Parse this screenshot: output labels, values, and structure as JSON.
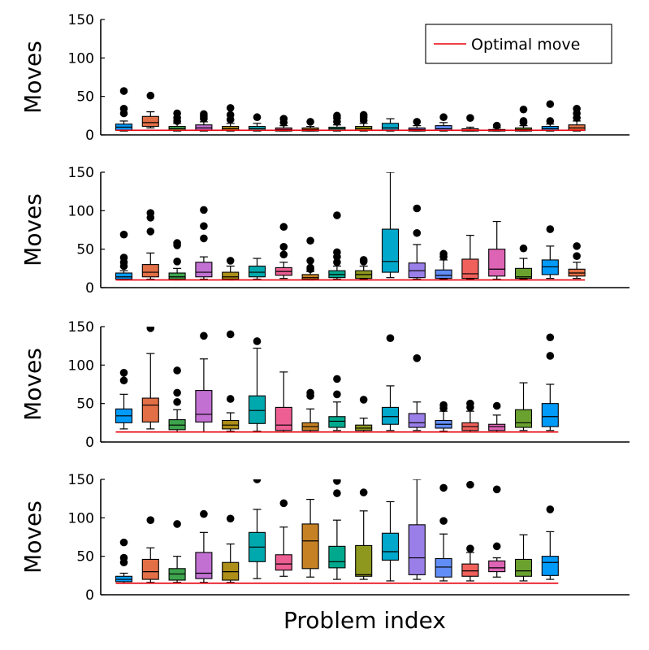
{
  "colors": {
    "optimal_line": "#e8000b",
    "palette": [
      "#009af9",
      "#e26f46",
      "#3da44d",
      "#c271d2",
      "#ac8e18",
      "#00a9ad",
      "#ed5e93",
      "#c68125",
      "#00a98d",
      "#8e971e",
      "#00a8cb",
      "#9b7fe8",
      "#618df6",
      "#f0615c",
      "#dd64b5",
      "#6aa12f",
      "#009af9",
      "#e26f46"
    ]
  },
  "chart_data": [
    {
      "type": "box",
      "ylabel": "Moves",
      "ylim": [
        0,
        150
      ],
      "yticks": [
        "0",
        "50",
        "100",
        "150"
      ],
      "legend": {
        "label": "Optimal move",
        "placement": "top-right"
      },
      "optimal": 6,
      "boxes": [
        {
          "q1": 6,
          "median": 10,
          "q3": 14,
          "wlo": 5,
          "whi": 18,
          "outliers": [
            28,
            34,
            57
          ]
        },
        {
          "q1": 11,
          "median": 16,
          "q3": 24,
          "wlo": 9,
          "whi": 30,
          "outliers": [
            51
          ]
        },
        {
          "q1": 6,
          "median": 8,
          "q3": 11,
          "wlo": 5,
          "whi": 15,
          "outliers": [
            18,
            22,
            28
          ]
        },
        {
          "q1": 6,
          "median": 9,
          "q3": 13,
          "wlo": 5,
          "whi": 17,
          "outliers": [
            21,
            24,
            27
          ]
        },
        {
          "q1": 6,
          "median": 8,
          "q3": 11,
          "wlo": 5,
          "whi": 15,
          "outliers": [
            20,
            26,
            35
          ]
        },
        {
          "q1": 6,
          "median": 8,
          "q3": 11,
          "wlo": 5,
          "whi": 15,
          "outliers": [
            23
          ]
        },
        {
          "q1": 5,
          "median": 7,
          "q3": 9,
          "wlo": 5,
          "whi": 12,
          "outliers": [
            16,
            21
          ]
        },
        {
          "q1": 5,
          "median": 7,
          "q3": 9,
          "wlo": 5,
          "whi": 11,
          "outliers": [
            17
          ]
        },
        {
          "q1": 6,
          "median": 8,
          "q3": 10,
          "wlo": 5,
          "whi": 13,
          "outliers": [
            17,
            22,
            25
          ]
        },
        {
          "q1": 6,
          "median": 8,
          "q3": 11,
          "wlo": 5,
          "whi": 15,
          "outliers": [
            19,
            23,
            26
          ]
        },
        {
          "q1": 6,
          "median": 9,
          "q3": 15,
          "wlo": 5,
          "whi": 21,
          "outliers": []
        },
        {
          "q1": 5,
          "median": 7,
          "q3": 9,
          "wlo": 5,
          "whi": 12,
          "outliers": [
            17
          ]
        },
        {
          "q1": 6,
          "median": 8,
          "q3": 12,
          "wlo": 5,
          "whi": 16,
          "outliers": [
            23
          ]
        },
        {
          "q1": 5,
          "median": 6,
          "q3": 8,
          "wlo": 5,
          "whi": 10,
          "outliers": [
            22
          ]
        },
        {
          "q1": 5,
          "median": 6,
          "q3": 7,
          "wlo": 5,
          "whi": 9,
          "outliers": [
            12
          ]
        },
        {
          "q1": 5,
          "median": 7,
          "q3": 9,
          "wlo": 5,
          "whi": 12,
          "outliers": [
            16,
            18,
            33
          ]
        },
        {
          "q1": 6,
          "median": 8,
          "q3": 11,
          "wlo": 5,
          "whi": 14,
          "outliers": [
            18,
            40
          ]
        },
        {
          "q1": 6,
          "median": 9,
          "q3": 13,
          "wlo": 5,
          "whi": 18,
          "outliers": [
            22,
            28,
            34
          ]
        }
      ]
    },
    {
      "type": "box",
      "ylabel": "Moves",
      "ylim": [
        0,
        150
      ],
      "yticks": [
        "0",
        "50",
        "100",
        "150"
      ],
      "optimal": 10,
      "boxes": [
        {
          "q1": 11,
          "median": 14,
          "q3": 19,
          "wlo": 10,
          "whi": 22,
          "outliers": [
            28,
            33,
            39,
            69
          ]
        },
        {
          "q1": 14,
          "median": 20,
          "q3": 30,
          "wlo": 11,
          "whi": 45,
          "outliers": [
            73,
            91,
            97
          ]
        },
        {
          "q1": 11,
          "median": 14,
          "q3": 19,
          "wlo": 10,
          "whi": 25,
          "outliers": [
            34,
            55,
            58
          ]
        },
        {
          "q1": 14,
          "median": 20,
          "q3": 33,
          "wlo": 11,
          "whi": 40,
          "outliers": [
            64,
            80,
            101
          ]
        },
        {
          "q1": 11,
          "median": 14,
          "q3": 20,
          "wlo": 10,
          "whi": 28,
          "outliers": [
            35
          ]
        },
        {
          "q1": 14,
          "median": 20,
          "q3": 28,
          "wlo": 11,
          "whi": 38,
          "outliers": []
        },
        {
          "q1": 16,
          "median": 21,
          "q3": 26,
          "wlo": 12,
          "whi": 33,
          "outliers": [
            43,
            53,
            79
          ]
        },
        {
          "q1": 11,
          "median": 13,
          "q3": 17,
          "wlo": 10,
          "whi": 21,
          "outliers": [
            24,
            26,
            35,
            61
          ]
        },
        {
          "q1": 13,
          "median": 17,
          "q3": 22,
          "wlo": 11,
          "whi": 28,
          "outliers": [
            33,
            40,
            46,
            94
          ]
        },
        {
          "q1": 12,
          "median": 17,
          "q3": 22,
          "wlo": 11,
          "whi": 28,
          "outliers": [
            34,
            36
          ]
        },
        {
          "q1": 20,
          "median": 34,
          "q3": 76,
          "wlo": 13,
          "whi": 150,
          "outliers": []
        },
        {
          "q1": 13,
          "median": 22,
          "q3": 32,
          "wlo": 11,
          "whi": 56,
          "outliers": [
            71,
            103
          ]
        },
        {
          "q1": 12,
          "median": 16,
          "q3": 23,
          "wlo": 11,
          "whi": 36,
          "outliers": [
            40,
            44
          ]
        },
        {
          "q1": 12,
          "median": 18,
          "q3": 37,
          "wlo": 11,
          "whi": 68,
          "outliers": []
        },
        {
          "q1": 15,
          "median": 24,
          "q3": 50,
          "wlo": 11,
          "whi": 86,
          "outliers": []
        },
        {
          "q1": 12,
          "median": 14,
          "q3": 25,
          "wlo": 11,
          "whi": 38,
          "outliers": [
            51
          ]
        },
        {
          "q1": 17,
          "median": 27,
          "q3": 36,
          "wlo": 12,
          "whi": 54,
          "outliers": [
            76
          ]
        },
        {
          "q1": 15,
          "median": 19,
          "q3": 24,
          "wlo": 12,
          "whi": 33,
          "outliers": [
            41,
            54
          ]
        }
      ]
    },
    {
      "type": "box",
      "ylabel": "Moves",
      "ylim": [
        0,
        150
      ],
      "yticks": [
        "0",
        "50",
        "100",
        "150"
      ],
      "optimal": 13,
      "boxes": [
        {
          "q1": 25,
          "median": 34,
          "q3": 43,
          "wlo": 17,
          "whi": 62,
          "outliers": [
            80,
            90
          ]
        },
        {
          "q1": 26,
          "median": 48,
          "q3": 57,
          "wlo": 17,
          "whi": 115,
          "outliers": [
            148
          ]
        },
        {
          "q1": 16,
          "median": 22,
          "q3": 29,
          "wlo": 13,
          "whi": 42,
          "outliers": [
            52,
            64,
            93
          ]
        },
        {
          "q1": 26,
          "median": 36,
          "q3": 67,
          "wlo": 13,
          "whi": 108,
          "outliers": [
            138
          ]
        },
        {
          "q1": 17,
          "median": 22,
          "q3": 28,
          "wlo": 14,
          "whi": 38,
          "outliers": [
            56,
            140
          ]
        },
        {
          "q1": 24,
          "median": 41,
          "q3": 60,
          "wlo": 14,
          "whi": 122,
          "outliers": [
            131
          ]
        },
        {
          "q1": 15,
          "median": 22,
          "q3": 45,
          "wlo": 13,
          "whi": 91,
          "outliers": []
        },
        {
          "q1": 15,
          "median": 20,
          "q3": 25,
          "wlo": 13,
          "whi": 43,
          "outliers": [
            60,
            64
          ]
        },
        {
          "q1": 19,
          "median": 27,
          "q3": 33,
          "wlo": 15,
          "whi": 52,
          "outliers": [
            62,
            82
          ]
        },
        {
          "q1": 15,
          "median": 18,
          "q3": 22,
          "wlo": 13,
          "whi": 31,
          "outliers": [
            55
          ]
        },
        {
          "q1": 23,
          "median": 33,
          "q3": 45,
          "wlo": 15,
          "whi": 73,
          "outliers": [
            135
          ]
        },
        {
          "q1": 19,
          "median": 25,
          "q3": 37,
          "wlo": 15,
          "whi": 52,
          "outliers": [
            109
          ]
        },
        {
          "q1": 18,
          "median": 23,
          "q3": 28,
          "wlo": 14,
          "whi": 40,
          "outliers": [
            44,
            48
          ]
        },
        {
          "q1": 15,
          "median": 20,
          "q3": 25,
          "wlo": 13,
          "whi": 40,
          "outliers": [
            45,
            50
          ]
        },
        {
          "q1": 15,
          "median": 20,
          "q3": 23,
          "wlo": 13,
          "whi": 35,
          "outliers": [
            47
          ]
        },
        {
          "q1": 19,
          "median": 25,
          "q3": 42,
          "wlo": 15,
          "whi": 77,
          "outliers": []
        },
        {
          "q1": 20,
          "median": 33,
          "q3": 50,
          "wlo": 15,
          "whi": 75,
          "outliers": [
            112,
            136
          ]
        }
      ]
    },
    {
      "type": "box",
      "ylabel": "Moves",
      "xlabel": "Problem index",
      "ylim": [
        0,
        150
      ],
      "yticks": [
        "0",
        "50",
        "100",
        "150"
      ],
      "optimal": 15,
      "boxes": [
        {
          "q1": 17,
          "median": 20,
          "q3": 24,
          "wlo": 15,
          "whi": 28,
          "outliers": [
            42,
            48,
            68
          ]
        },
        {
          "q1": 20,
          "median": 30,
          "q3": 46,
          "wlo": 16,
          "whi": 61,
          "outliers": [
            97
          ]
        },
        {
          "q1": 19,
          "median": 27,
          "q3": 34,
          "wlo": 16,
          "whi": 50,
          "outliers": [
            92
          ]
        },
        {
          "q1": 21,
          "median": 28,
          "q3": 55,
          "wlo": 16,
          "whi": 81,
          "outliers": [
            105
          ]
        },
        {
          "q1": 19,
          "median": 30,
          "q3": 42,
          "wlo": 16,
          "whi": 66,
          "outliers": [
            99
          ]
        },
        {
          "q1": 43,
          "median": 62,
          "q3": 81,
          "wlo": 21,
          "whi": 111,
          "outliers": [
            150
          ]
        },
        {
          "q1": 32,
          "median": 40,
          "q3": 52,
          "wlo": 24,
          "whi": 88,
          "outliers": [
            119
          ]
        },
        {
          "q1": 34,
          "median": 70,
          "q3": 92,
          "wlo": 23,
          "whi": 124,
          "outliers": []
        },
        {
          "q1": 35,
          "median": 43,
          "q3": 63,
          "wlo": 20,
          "whi": 97,
          "outliers": [
            132,
            148
          ]
        },
        {
          "q1": 24,
          "median": 26,
          "q3": 64,
          "wlo": 20,
          "whi": 109,
          "outliers": [
            133
          ]
        },
        {
          "q1": 45,
          "median": 56,
          "q3": 80,
          "wlo": 18,
          "whi": 121,
          "outliers": []
        },
        {
          "q1": 26,
          "median": 48,
          "q3": 91,
          "wlo": 20,
          "whi": 150,
          "outliers": []
        },
        {
          "q1": 23,
          "median": 36,
          "q3": 47,
          "wlo": 18,
          "whi": 79,
          "outliers": [
            96,
            139
          ]
        },
        {
          "q1": 24,
          "median": 31,
          "q3": 40,
          "wlo": 18,
          "whi": 55,
          "outliers": [
            60,
            143
          ]
        },
        {
          "q1": 30,
          "median": 35,
          "q3": 44,
          "wlo": 23,
          "whi": 48,
          "outliers": [
            63,
            137
          ]
        },
        {
          "q1": 24,
          "median": 31,
          "q3": 46,
          "wlo": 18,
          "whi": 78,
          "outliers": []
        },
        {
          "q1": 25,
          "median": 42,
          "q3": 50,
          "wlo": 20,
          "whi": 82,
          "outliers": [
            111
          ]
        }
      ]
    }
  ]
}
